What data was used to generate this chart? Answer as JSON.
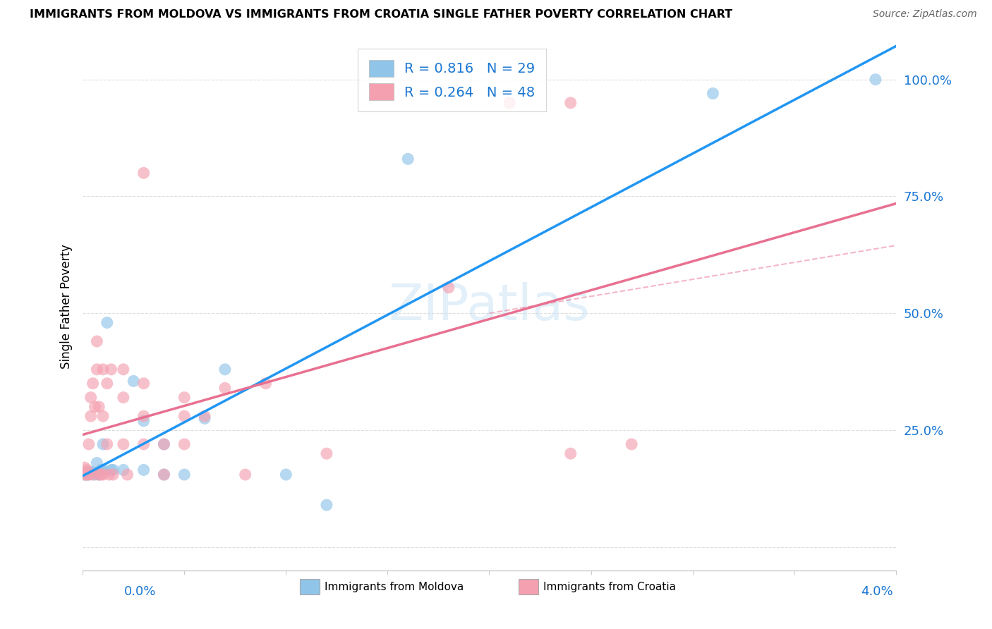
{
  "title": "IMMIGRANTS FROM MOLDOVA VS IMMIGRANTS FROM CROATIA SINGLE FATHER POVERTY CORRELATION CHART",
  "source": "Source: ZipAtlas.com",
  "ylabel": "Single Father Poverty",
  "xlim": [
    0.0,
    0.04
  ],
  "ylim": [
    -0.05,
    1.08
  ],
  "moldova_color": "#90c4e8",
  "croatia_color": "#f4a0b0",
  "moldova_line_color": "#2196F3",
  "croatia_line_color": "#e87090",
  "moldova_R": 0.816,
  "moldova_N": 29,
  "croatia_R": 0.264,
  "croatia_N": 48,
  "y_ticks": [
    0.0,
    0.25,
    0.5,
    0.75,
    1.0
  ],
  "y_tick_labels": [
    "",
    "25.0%",
    "50.0%",
    "75.0%",
    "100.0%"
  ],
  "moldova_x": [
    0.0001,
    0.0002,
    0.0002,
    0.0003,
    0.0004,
    0.0005,
    0.0006,
    0.0007,
    0.0008,
    0.0009,
    0.001,
    0.001,
    0.0012,
    0.0014,
    0.0015,
    0.002,
    0.0025,
    0.003,
    0.003,
    0.004,
    0.004,
    0.005,
    0.006,
    0.007,
    0.01,
    0.012,
    0.016,
    0.031,
    0.039
  ],
  "moldova_y": [
    0.155,
    0.155,
    0.16,
    0.155,
    0.16,
    0.16,
    0.155,
    0.18,
    0.155,
    0.165,
    0.22,
    0.165,
    0.48,
    0.165,
    0.165,
    0.165,
    0.355,
    0.27,
    0.165,
    0.22,
    0.155,
    0.155,
    0.275,
    0.38,
    0.155,
    0.09,
    0.83,
    0.97,
    1.0
  ],
  "croatia_x": [
    0.0001,
    0.0001,
    0.0001,
    0.0002,
    0.0002,
    0.0003,
    0.0003,
    0.0004,
    0.0004,
    0.0005,
    0.0005,
    0.0006,
    0.0007,
    0.0007,
    0.0008,
    0.0008,
    0.0009,
    0.001,
    0.001,
    0.001,
    0.0012,
    0.0012,
    0.0013,
    0.0014,
    0.0015,
    0.002,
    0.002,
    0.002,
    0.0022,
    0.003,
    0.003,
    0.003,
    0.003,
    0.004,
    0.004,
    0.005,
    0.005,
    0.005,
    0.006,
    0.007,
    0.008,
    0.009,
    0.012,
    0.018,
    0.021,
    0.024,
    0.024,
    0.027
  ],
  "croatia_y": [
    0.155,
    0.16,
    0.17,
    0.155,
    0.165,
    0.155,
    0.22,
    0.28,
    0.32,
    0.155,
    0.35,
    0.3,
    0.38,
    0.44,
    0.155,
    0.3,
    0.155,
    0.155,
    0.28,
    0.38,
    0.22,
    0.35,
    0.155,
    0.38,
    0.155,
    0.22,
    0.32,
    0.38,
    0.155,
    0.22,
    0.28,
    0.35,
    0.8,
    0.155,
    0.22,
    0.22,
    0.28,
    0.32,
    0.28,
    0.34,
    0.155,
    0.35,
    0.2,
    0.555,
    0.95,
    0.95,
    0.2,
    0.22
  ]
}
